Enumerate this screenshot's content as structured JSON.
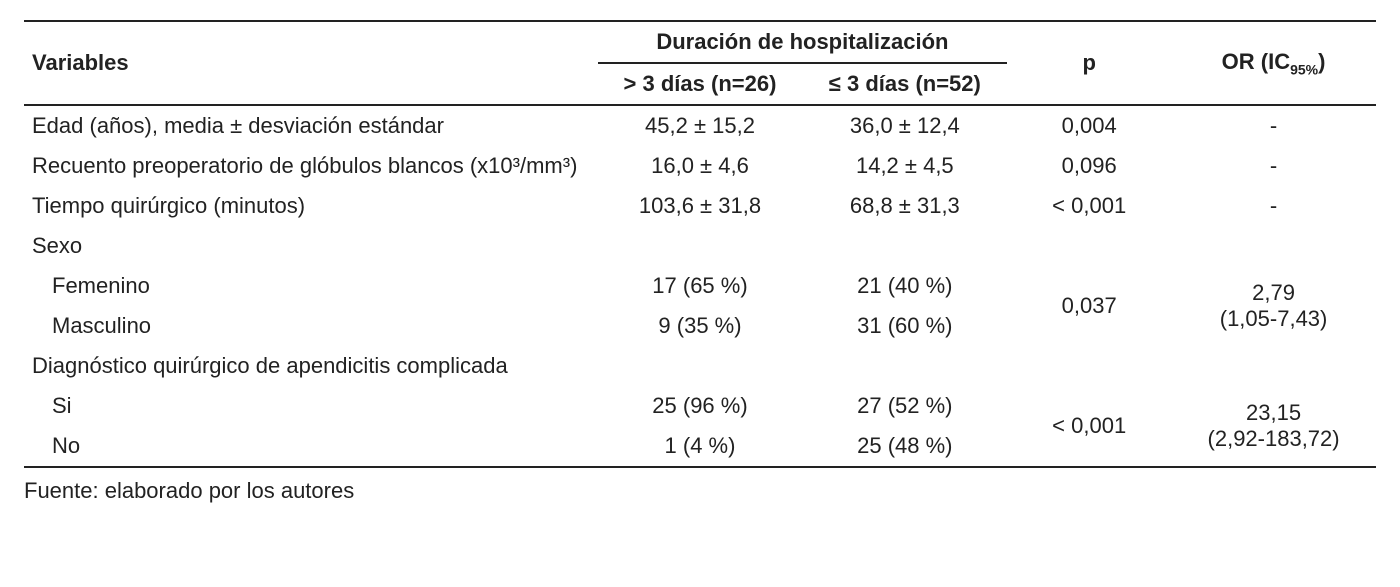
{
  "header": {
    "variables": "Variables",
    "group_header": "Duración de hospitalización",
    "col_gt3": "> 3 días (n=26)",
    "col_le3": "≤ 3 días (n=52)",
    "p": "p",
    "or_pre": "OR (IC",
    "or_sub": "95%",
    "or_post": ")"
  },
  "rows": {
    "edad": {
      "label": "Edad (años), media ± desviación estándar",
      "gt3": "45,2 ± 15,2",
      "le3": "36,0 ± 12,4",
      "p": "0,004",
      "or": "-"
    },
    "wbc": {
      "label": "Recuento preoperatorio de glóbulos blancos (x10³/mm³)",
      "gt3": "16,0 ± 4,6",
      "le3": "14,2 ± 4,5",
      "p": "0,096",
      "or": "-"
    },
    "time": {
      "label": "Tiempo quirúrgico (minutos)",
      "gt3": "103,6 ± 31,8",
      "le3": "68,8 ± 31,3",
      "p": "< 0,001",
      "or": "-"
    },
    "sexo_header": "Sexo",
    "sexo_f": {
      "label": "Femenino",
      "gt3": "17 (65 %)",
      "le3": "21 (40 %)"
    },
    "sexo_m": {
      "label": "Masculino",
      "gt3": "9 (35 %)",
      "le3": "31 (60 %)"
    },
    "sexo_p": "0,037",
    "sexo_or_top": "2,79",
    "sexo_or_bot": "(1,05-7,43)",
    "dx_header": "Diagnóstico quirúrgico de apendicitis complicada",
    "dx_si": {
      "label": "Si",
      "gt3": "25 (96 %)",
      "le3": "27 (52 %)"
    },
    "dx_no": {
      "label": "No",
      "gt3": "1 (4 %)",
      "le3": "25 (48 %)"
    },
    "dx_p": "< 0,001",
    "dx_or_top": "23,15",
    "dx_or_bot": "(2,92-183,72)"
  },
  "footer": "Fuente: elaborado por los autores"
}
